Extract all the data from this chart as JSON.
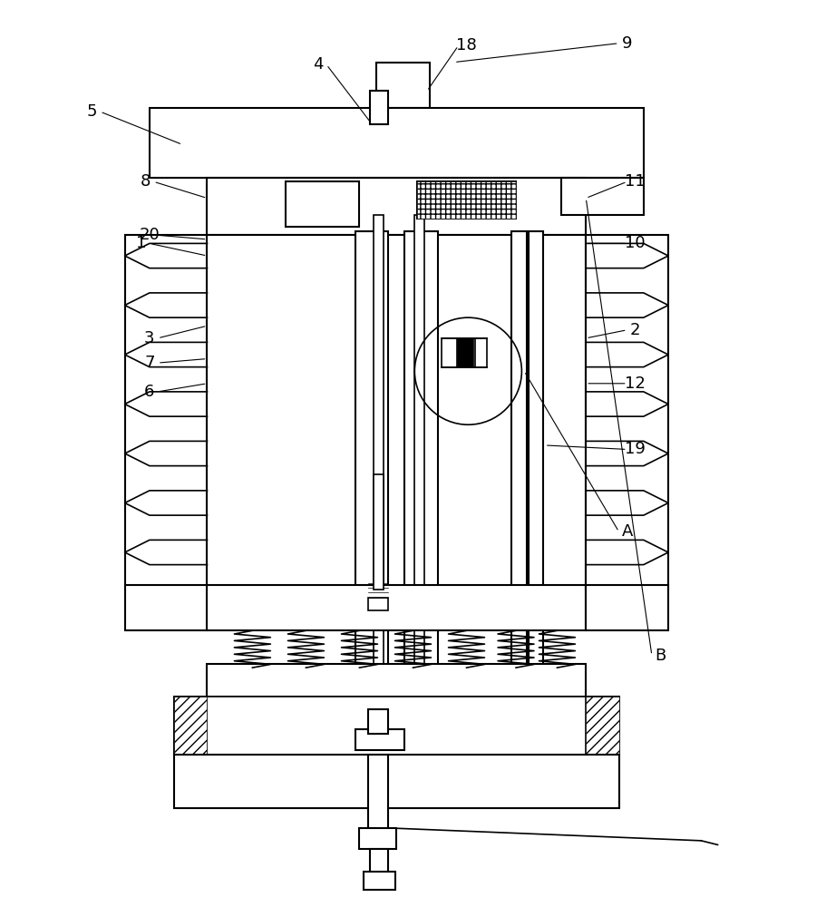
{
  "title": "",
  "bg_color": "#ffffff",
  "line_color": "#000000",
  "hatch_color": "#000000",
  "labels": {
    "1": [
      0.18,
      0.72,
      0.28,
      0.71
    ],
    "2": [
      0.76,
      0.605,
      0.68,
      0.615
    ],
    "3": [
      0.22,
      0.6,
      0.3,
      0.595
    ],
    "4": [
      0.38,
      0.09,
      0.44,
      0.115
    ],
    "5": [
      0.1,
      0.12,
      0.22,
      0.13
    ],
    "6": [
      0.22,
      0.53,
      0.3,
      0.525
    ],
    "7": [
      0.22,
      0.565,
      0.3,
      0.565
    ],
    "8": [
      0.18,
      0.79,
      0.28,
      0.785
    ],
    "9": [
      0.75,
      0.955,
      0.7,
      0.945
    ],
    "10": [
      0.76,
      0.72,
      0.68,
      0.715
    ],
    "11": [
      0.76,
      0.8,
      0.68,
      0.795
    ],
    "12": [
      0.76,
      0.55,
      0.68,
      0.545
    ],
    "18": [
      0.56,
      0.04,
      0.56,
      0.065
    ],
    "19": [
      0.76,
      0.475,
      0.68,
      0.465
    ],
    "20": [
      0.22,
      0.72,
      0.3,
      0.715
    ],
    "A": [
      0.76,
      0.375,
      0.71,
      0.37
    ],
    "B": [
      0.8,
      0.22,
      0.74,
      0.215
    ]
  },
  "figsize": [
    9.11,
    10.0
  ],
  "dpi": 100
}
